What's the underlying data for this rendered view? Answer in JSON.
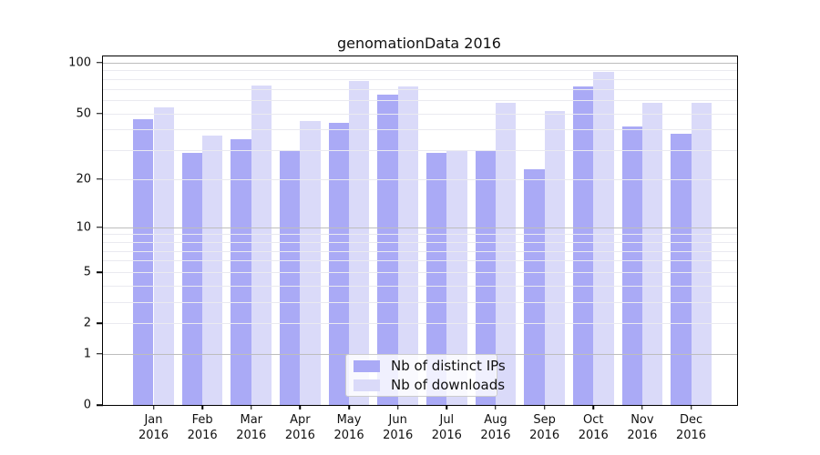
{
  "chart_data": {
    "type": "bar",
    "title": "genomationData 2016",
    "categories": [
      "Jan",
      "Feb",
      "Mar",
      "Apr",
      "May",
      "Jun",
      "Jul",
      "Aug",
      "Sep",
      "Oct",
      "Nov",
      "Dec"
    ],
    "year": "2016",
    "series": [
      {
        "name": "Nb of distinct IPs",
        "color": "#aaaaf6",
        "values": [
          46,
          29,
          35,
          30,
          44,
          65,
          29,
          30,
          23,
          72,
          42,
          38
        ]
      },
      {
        "name": "Nb of downloads",
        "color": "#dadaf9",
        "values": [
          54,
          37,
          73,
          45,
          78,
          72,
          30,
          58,
          52,
          88,
          58,
          58
        ]
      }
    ],
    "y_scale": "log1p",
    "ylim": [
      0,
      109
    ],
    "y_ticks": [
      0,
      1,
      2,
      5,
      10,
      20,
      50,
      100
    ],
    "gridlines": {
      "major": [
        1,
        10,
        100
      ],
      "minor": [
        2,
        3,
        4,
        5,
        6,
        7,
        8,
        9,
        20,
        30,
        40,
        50,
        60,
        70,
        80,
        90
      ]
    },
    "grid": true,
    "legend_position": "bottom-center",
    "colors": {
      "major_grid": "#bdbdbd",
      "minor_grid": "#eaeaf0",
      "axis": "#000000",
      "legend_border": "#cccccc"
    }
  }
}
